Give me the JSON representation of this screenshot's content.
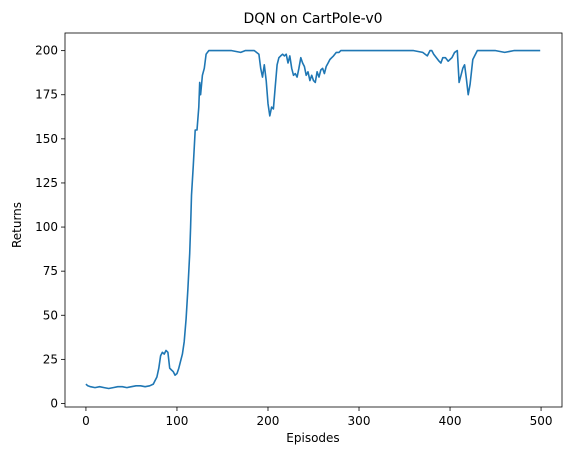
{
  "chart_data": {
    "type": "line",
    "title": "DQN on CartPole-v0",
    "xlabel": "Episodes",
    "ylabel": "Returns",
    "xlim": [
      -23,
      523
    ],
    "ylim": [
      -2,
      210
    ],
    "xticks": [
      0,
      100,
      200,
      300,
      400,
      500
    ],
    "yticks": [
      0,
      25,
      50,
      75,
      100,
      125,
      150,
      175,
      200
    ],
    "grid": false,
    "line_color": "#1f77b4",
    "series": [
      {
        "x": [
          0,
          2,
          5,
          10,
          15,
          20,
          25,
          30,
          35,
          40,
          45,
          50,
          55,
          60,
          65,
          70,
          74,
          76,
          78,
          80,
          82,
          84,
          86,
          88,
          90,
          92,
          94,
          96,
          98,
          100,
          102,
          104,
          106,
          108,
          110,
          112,
          114,
          115,
          116,
          118,
          120,
          122,
          124,
          125,
          126,
          128,
          130,
          132,
          135,
          138,
          140,
          145,
          150,
          160,
          170,
          175,
          180,
          185,
          190,
          192,
          194,
          196,
          198,
          200,
          202,
          204,
          206,
          208,
          210,
          212,
          214,
          216,
          218,
          220,
          222,
          224,
          226,
          228,
          230,
          232,
          234,
          236,
          238,
          240,
          242,
          244,
          246,
          248,
          250,
          252,
          254,
          256,
          258,
          260,
          262,
          264,
          266,
          268,
          270,
          272,
          275,
          278,
          280,
          285,
          290,
          300,
          320,
          340,
          360,
          370,
          375,
          378,
          380,
          382,
          385,
          388,
          390,
          392,
          395,
          398,
          400,
          402,
          405,
          408,
          410,
          412,
          414,
          416,
          418,
          420,
          422,
          425,
          430,
          440,
          450,
          460,
          470,
          480,
          490,
          499
        ],
        "y": [
          11,
          10,
          9.5,
          9,
          9.5,
          9,
          8.5,
          9,
          9.5,
          9.5,
          9,
          9.5,
          10,
          10,
          9.5,
          10,
          11,
          13,
          15,
          20,
          27,
          29,
          28,
          30,
          29,
          20,
          19,
          18,
          16,
          17,
          20,
          24,
          28,
          35,
          48,
          65,
          85,
          100,
          118,
          135,
          155,
          155,
          168,
          182,
          175,
          186,
          190,
          198,
          200,
          200,
          200,
          200,
          200,
          200,
          199,
          200,
          200,
          200,
          198,
          190,
          185,
          192,
          183,
          170,
          163,
          168,
          167,
          180,
          192,
          196,
          197,
          198,
          197,
          198,
          193,
          197,
          190,
          186,
          187,
          185,
          190,
          196,
          193,
          191,
          186,
          188,
          183,
          186,
          183,
          182,
          188,
          185,
          189,
          190,
          187,
          191,
          193,
          195,
          196,
          197,
          199,
          199,
          200,
          200,
          200,
          200,
          200,
          200,
          200,
          199,
          197,
          200,
          200,
          198,
          196,
          194,
          193,
          196,
          196,
          194,
          195,
          196,
          199,
          200,
          182,
          186,
          190,
          192,
          184,
          175,
          181,
          195,
          200,
          200,
          200,
          199,
          200,
          200,
          200,
          200
        ]
      }
    ]
  }
}
